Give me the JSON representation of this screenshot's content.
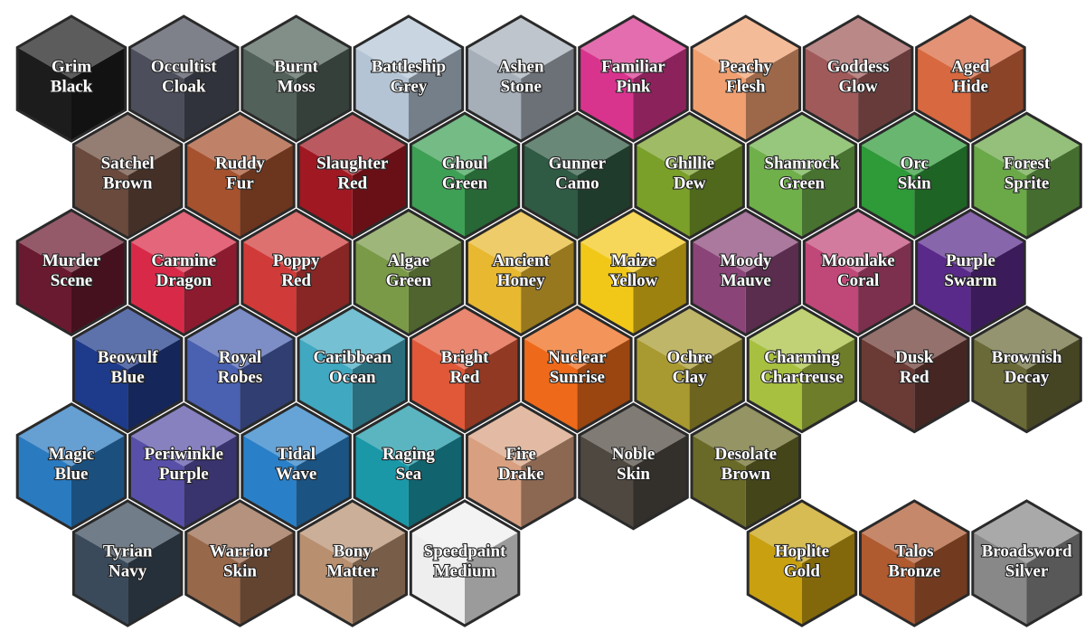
{
  "rows": [
    [
      {
        "lines": [
          "Grim",
          "Black"
        ],
        "color": "#1c1c1c"
      },
      {
        "lines": [
          "Occultist",
          "Cloak"
        ],
        "color": "#4c4e5c"
      },
      {
        "lines": [
          "Burnt",
          "Moss"
        ],
        "color": "#52625a"
      },
      {
        "lines": [
          "Battleship",
          "Grey"
        ],
        "color": "#b4c4d4"
      },
      {
        "lines": [
          "Ashen",
          "Stone"
        ],
        "color": "#a6aeb8"
      },
      {
        "lines": [
          "Familiar",
          "Pink"
        ],
        "color": "#d8348e"
      },
      {
        "lines": [
          "Peachy",
          "Flesh"
        ],
        "color": "#f0a070"
      },
      {
        "lines": [
          "Goddess",
          "Glow"
        ],
        "color": "#a05a5a"
      },
      {
        "lines": [
          "Aged",
          "Hide"
        ],
        "color": "#d8683f"
      }
    ],
    [
      {
        "lines": [
          "Satchel",
          "Brown"
        ],
        "color": "#6a4a3c"
      },
      {
        "lines": [
          "Ruddy",
          "Fur"
        ],
        "color": "#a6522e"
      },
      {
        "lines": [
          "Slaughter",
          "Red"
        ],
        "color": "#a01822"
      },
      {
        "lines": [
          "Ghoul",
          "Green"
        ],
        "color": "#3ea055"
      },
      {
        "lines": [
          "Gunner",
          "Camo"
        ],
        "color": "#2f5a44"
      },
      {
        "lines": [
          "Ghillie",
          "Dew"
        ],
        "color": "#7aa02a"
      },
      {
        "lines": [
          "Shamrock",
          "Green"
        ],
        "color": "#6fb04a"
      },
      {
        "lines": [
          "Orc",
          "Skin"
        ],
        "color": "#2e9a38"
      },
      {
        "lines": [
          "Forest",
          "Sprite"
        ],
        "color": "#6aa848"
      }
    ],
    [
      {
        "lines": [
          "Murder",
          "Scene"
        ],
        "color": "#6a1a30"
      },
      {
        "lines": [
          "Carmine",
          "Dragon"
        ],
        "color": "#d82a48"
      },
      {
        "lines": [
          "Poppy",
          "Red"
        ],
        "color": "#d03a38"
      },
      {
        "lines": [
          "Algae",
          "Green"
        ],
        "color": "#7a9a48"
      },
      {
        "lines": [
          "Ancient",
          "Honey"
        ],
        "color": "#e8b830"
      },
      {
        "lines": [
          "Maize",
          "Yellow"
        ],
        "color": "#f2c818"
      },
      {
        "lines": [
          "Moody",
          "Mauve"
        ],
        "color": "#8a4478"
      },
      {
        "lines": [
          "Moonlake",
          "Coral"
        ],
        "color": "#c04878"
      },
      {
        "lines": [
          "Purple",
          "Swarm"
        ],
        "color": "#5a2a8a"
      }
    ],
    [
      {
        "lines": [
          "Beowulf",
          "Blue"
        ],
        "color": "#1e3a8a"
      },
      {
        "lines": [
          "Royal",
          "Robes"
        ],
        "color": "#4a60b0"
      },
      {
        "lines": [
          "Caribbean",
          "Ocean"
        ],
        "color": "#40a8c0"
      },
      {
        "lines": [
          "Bright",
          "Red"
        ],
        "color": "#e05838"
      },
      {
        "lines": [
          "Nuclear",
          "Sunrise"
        ],
        "color": "#ee6a1a"
      },
      {
        "lines": [
          "Ochre",
          "Clay"
        ],
        "color": "#a89a30"
      },
      {
        "lines": [
          "Charming",
          "Chartreuse"
        ],
        "color": "#a8c040"
      },
      {
        "lines": [
          "Dusk",
          "Red"
        ],
        "color": "#6a3a34"
      },
      {
        "lines": [
          "Brownish",
          "Decay"
        ],
        "color": "#6a6a38"
      }
    ],
    [
      {
        "lines": [
          "Magic",
          "Blue"
        ],
        "color": "#2a7ac0"
      },
      {
        "lines": [
          "Periwinkle",
          "Purple"
        ],
        "color": "#5850a8"
      },
      {
        "lines": [
          "Tidal",
          "Wave"
        ],
        "color": "#2a80c8"
      },
      {
        "lines": [
          "Raging",
          "Sea"
        ],
        "color": "#1a98a8"
      },
      {
        "lines": [
          "Fire",
          "Drake"
        ],
        "color": "#d8a080"
      },
      {
        "lines": [
          "Noble",
          "Skin"
        ],
        "color": "#4e4840"
      },
      {
        "lines": [
          "Desolate",
          "Brown"
        ],
        "color": "#6a6a28"
      }
    ],
    [
      {
        "lines": [
          "Tyrian",
          "Navy"
        ],
        "color": "#3a4a5a"
      },
      {
        "lines": [
          "Warrior",
          "Skin"
        ],
        "color": "#98684a"
      },
      {
        "lines": [
          "Bony",
          "Matter"
        ],
        "color": "#b89070"
      },
      {
        "lines": [
          "Speedpaint",
          "Medium"
        ],
        "color": "#eeeeee"
      },
      {
        "lines": [
          "Hoplite",
          "Gold"
        ],
        "color": "#c8a010"
      },
      {
        "lines": [
          "Talos",
          "Bronze"
        ],
        "color": "#b05a30"
      },
      {
        "lines": [
          "Broadsword",
          "Silver"
        ],
        "color": "#888888"
      }
    ]
  ]
}
